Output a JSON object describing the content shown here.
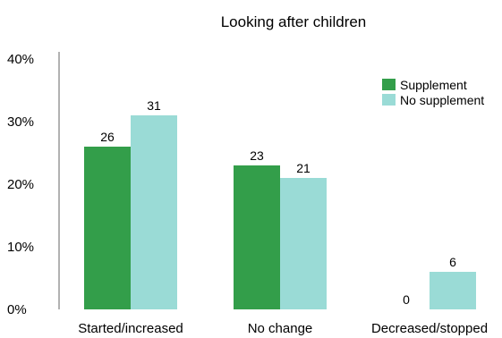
{
  "chart_data": {
    "type": "bar",
    "title": "Looking after children",
    "xlabel": "",
    "ylabel": "",
    "ylim": [
      0,
      40
    ],
    "yticks": [
      0,
      10,
      20,
      30,
      40
    ],
    "ytick_labels": [
      "0%",
      "10%",
      "20%",
      "30%",
      "40%"
    ],
    "categories": [
      "Started/increased",
      "No change",
      "Decreased/stopped"
    ],
    "series": [
      {
        "name": "Supplement",
        "values": [
          26,
          23,
          0
        ],
        "color": "#339e4a"
      },
      {
        "name": "No supplement",
        "values": [
          31,
          21,
          6
        ],
        "color": "#9adbd6"
      }
    ],
    "data_labels": [
      [
        "26",
        "23",
        "0"
      ],
      [
        "31",
        "21",
        "6"
      ]
    ],
    "legend": "top-right",
    "grid": false
  }
}
